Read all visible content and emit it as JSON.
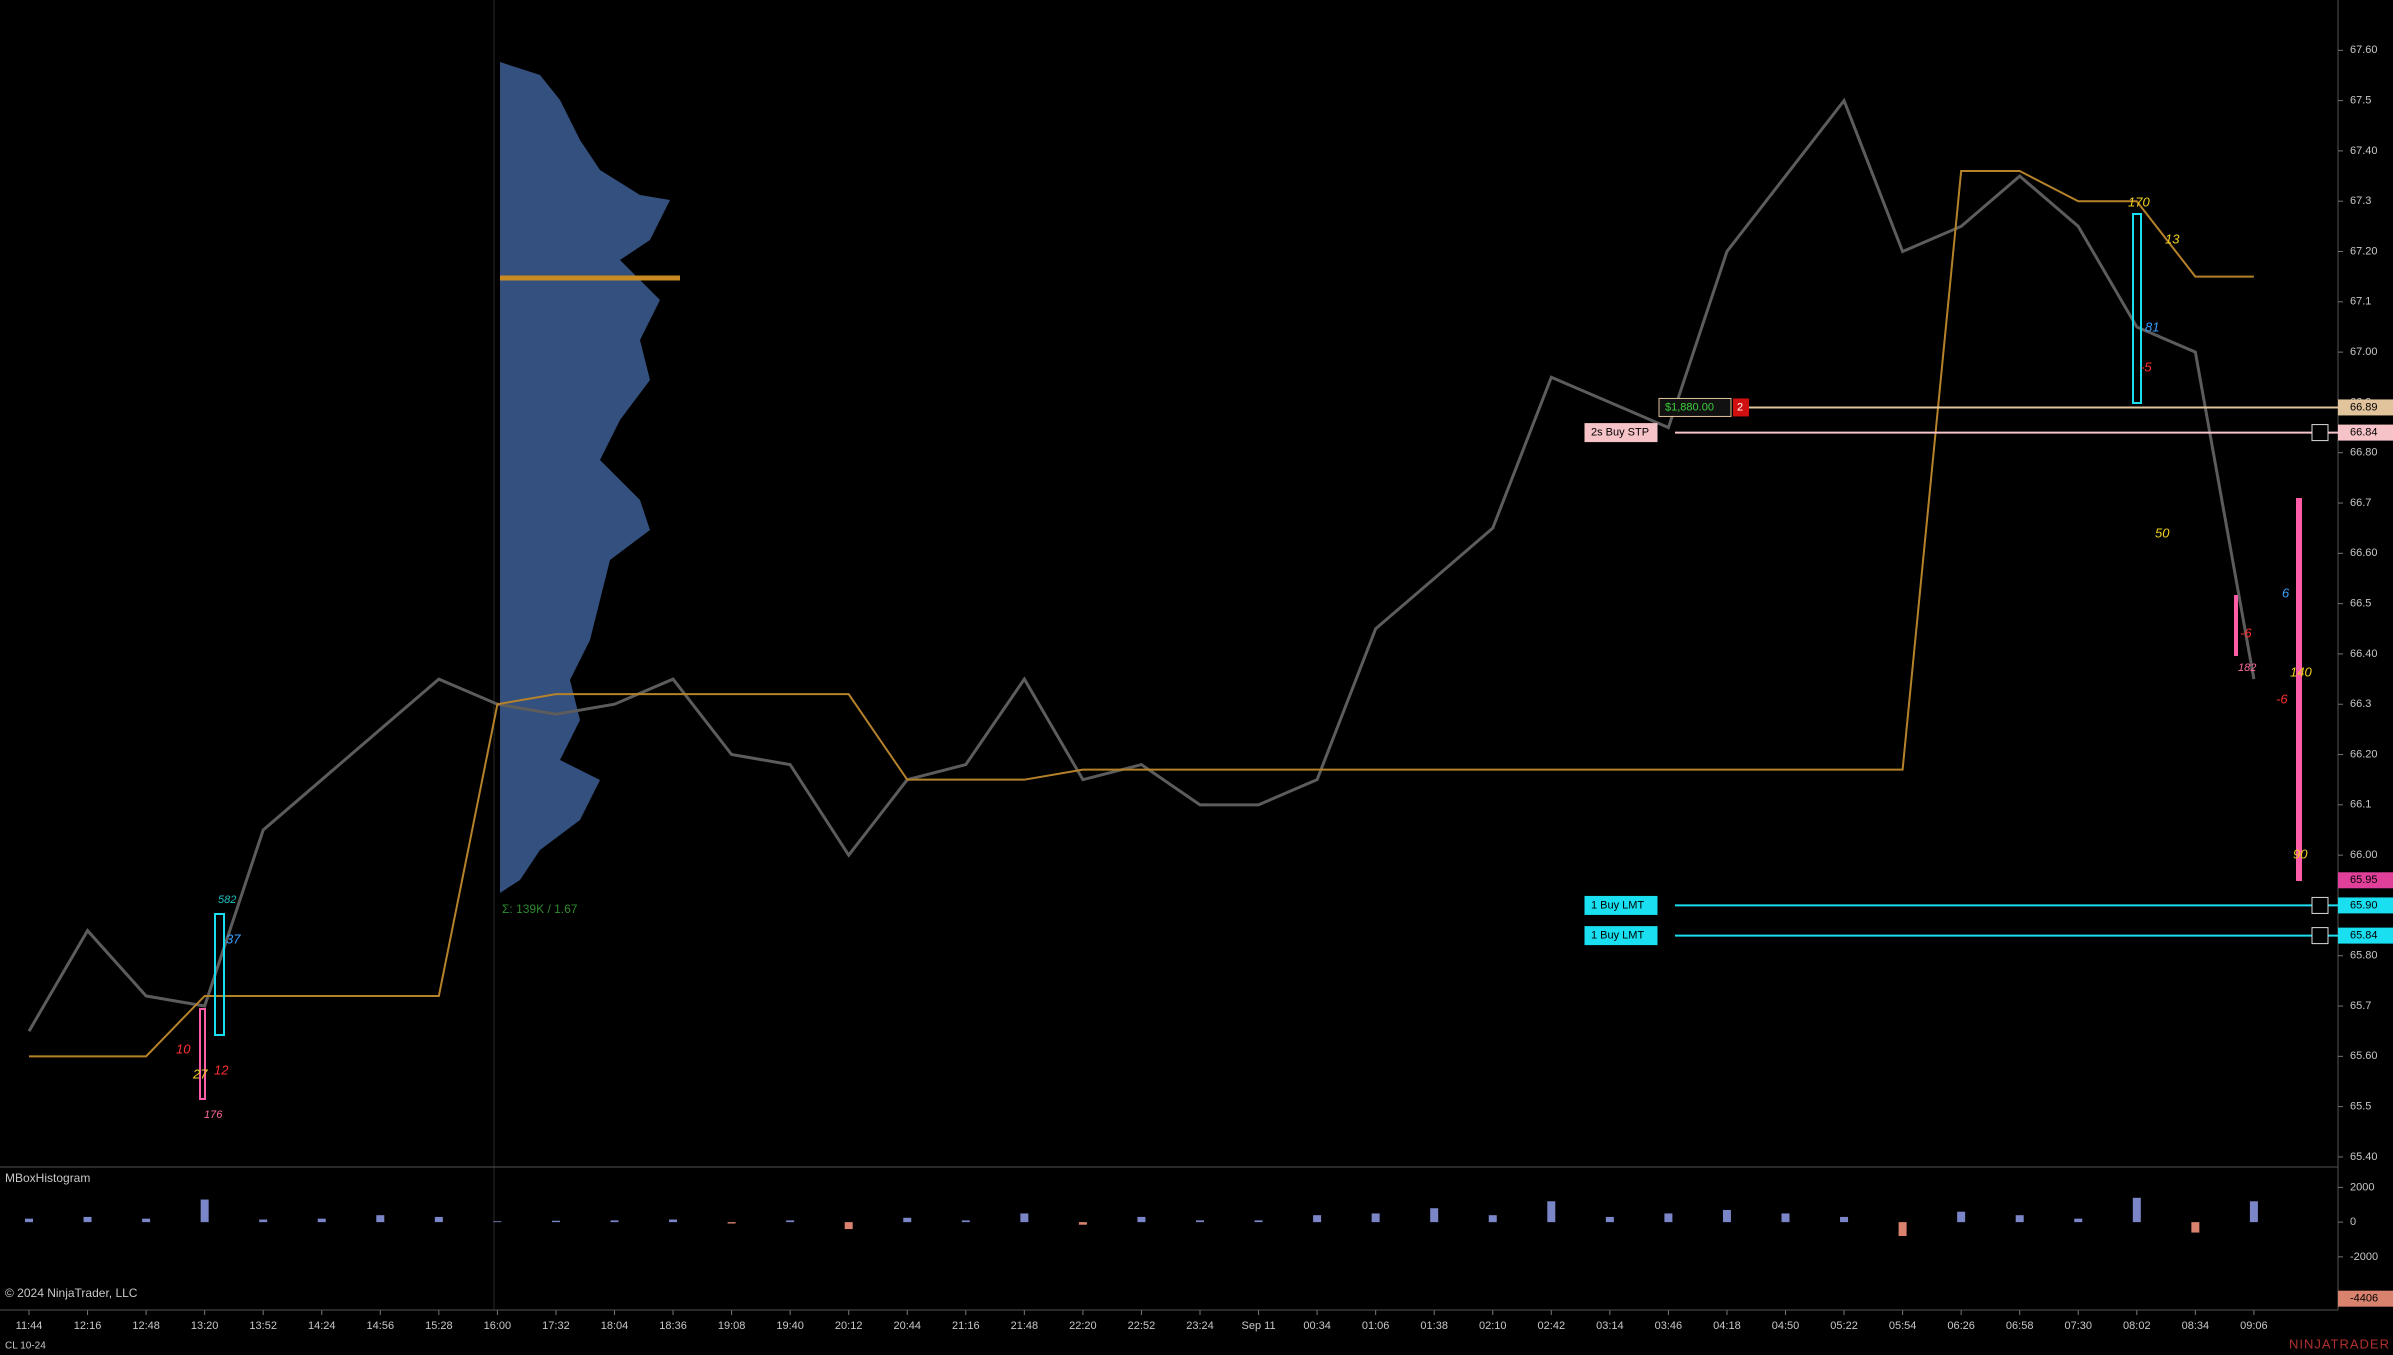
{
  "chart_data": {
    "type": "line",
    "categories": [
      "11:44",
      "12:16",
      "12:48",
      "13:20",
      "13:52",
      "14:24",
      "14:56",
      "15:28",
      "16:00",
      "17:32",
      "18:04",
      "18:36",
      "19:08",
      "19:40",
      "20:12",
      "20:44",
      "21:16",
      "21:48",
      "22:20",
      "22:52",
      "23:24",
      "Sep 11",
      "00:34",
      "01:06",
      "01:38",
      "02:10",
      "02:42",
      "03:14",
      "03:46",
      "04:18",
      "04:50",
      "05:22",
      "05:54",
      "06:26",
      "06:58",
      "07:30",
      "08:02",
      "08:34",
      "09:06"
    ],
    "series": [
      {
        "color": "#5c5c5c",
        "values": [
          65.65,
          65.85,
          65.72,
          65.7,
          66.05,
          66.15,
          66.25,
          66.35,
          66.3,
          66.28,
          66.3,
          66.35,
          66.2,
          66.18,
          66.0,
          66.15,
          66.18,
          66.35,
          66.15,
          66.18,
          66.1,
          66.1,
          66.15,
          66.45,
          66.55,
          66.65,
          66.95,
          66.9,
          66.85,
          67.2,
          67.35,
          67.5,
          67.2,
          67.25,
          67.35,
          67.25,
          67.05,
          67.0,
          66.35
        ]
      },
      {
        "color": "#b5822a",
        "values": [
          65.6,
          65.6,
          65.6,
          65.72,
          65.72,
          65.72,
          65.72,
          65.72,
          66.3,
          66.32,
          66.32,
          66.32,
          66.32,
          66.32,
          66.32,
          66.15,
          66.15,
          66.15,
          66.17,
          66.17,
          66.17,
          66.17,
          66.17,
          66.17,
          66.17,
          66.17,
          66.17,
          66.17,
          66.17,
          66.17,
          66.17,
          66.17,
          66.17,
          67.36,
          67.36,
          67.3,
          67.3,
          67.15,
          67.15
        ]
      }
    ],
    "ylim": [
      65.38,
      67.7
    ],
    "yticks": [
      {
        "value": 65.4,
        "label": "65.40"
      },
      65.5,
      {
        "value": 65.6,
        "label": "65.60"
      },
      65.7,
      {
        "value": 65.8,
        "label": "65.80"
      },
      65.9,
      {
        "value": 66.0,
        "label": "66.00"
      },
      66.1,
      {
        "value": 66.2,
        "label": "66.20"
      },
      66.3,
      {
        "value": 66.4,
        "label": "66.40"
      },
      66.5,
      {
        "value": 66.6,
        "label": "66.60"
      },
      66.7,
      {
        "value": 66.8,
        "label": "66.80"
      },
      66.9,
      {
        "value": 67.0,
        "label": "67.00"
      },
      67.1,
      {
        "value": 67.2,
        "label": "67.20"
      },
      67.3,
      {
        "value": 67.4,
        "label": "67.40"
      },
      67.5,
      {
        "value": 67.6,
        "label": "67.60"
      }
    ],
    "price_markers": [
      {
        "value": 66.89,
        "color": "#e2c49c",
        "tag": "$1,880.00",
        "qty": 2
      },
      {
        "value": 66.84,
        "color": "#f6c3c8",
        "tag": "2s  Buy STP"
      },
      {
        "value": 65.95,
        "color": "#e0409a"
      },
      {
        "value": 65.9,
        "label": "65.90",
        "color": "#19dff0",
        "tag": "1  Buy LMT"
      },
      {
        "value": 65.84,
        "color": "#19dff0",
        "tag": "1  Buy LMT"
      }
    ],
    "profile_label": "Σ: 139K / 1.67",
    "annotations": [
      "10",
      "12",
      "27",
      "176",
      "582",
      "37",
      "170",
      "13",
      "81",
      "-5",
      "50",
      "6",
      "-6",
      "182",
      "140",
      "-6",
      "90"
    ],
    "indicator": {
      "title": "MBoxHistogram",
      "values": [
        200,
        300,
        200,
        1300,
        150,
        200,
        400,
        300,
        50,
        80,
        100,
        150,
        -80,
        100,
        -400,
        250,
        100,
        500,
        -150,
        300,
        100,
        100,
        400,
        500,
        800,
        400,
        1200,
        300,
        500,
        700,
        500,
        300,
        -800,
        600,
        400,
        200,
        1400,
        -600,
        1200
      ],
      "positive_color": "#7b86c8",
      "negative_color": "#d9826e",
      "ylim": [
        -5000,
        3000
      ],
      "yticks": [
        2000,
        0,
        -2000
      ],
      "marker": -4406
    },
    "copyright": "© 2024 NinjaTrader, LLC",
    "instrument": "CL 10-24",
    "brand": "NINJATRADER"
  }
}
